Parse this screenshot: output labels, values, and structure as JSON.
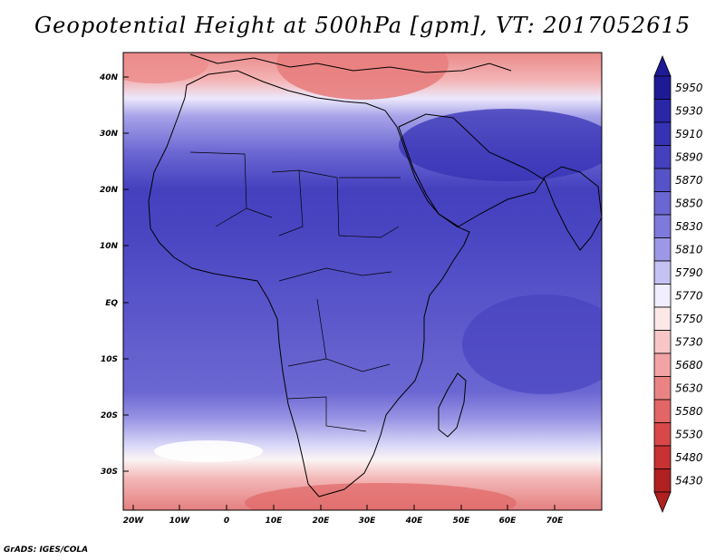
{
  "title": "Geopotential Height at 500hPa [gpm], VT: 2017052615",
  "credit": "GrADS: IGES/COLA",
  "map": {
    "lat_labels": [
      "40N",
      "30N",
      "20N",
      "10N",
      "EQ",
      "10S",
      "20S",
      "30S"
    ],
    "lon_labels": [
      "20W",
      "10W",
      "0",
      "10E",
      "20E",
      "30E",
      "40E",
      "50E",
      "60E",
      "70E"
    ]
  },
  "colorbar": {
    "levels": [
      {
        "value": "5950",
        "color": "#1e1a96"
      },
      {
        "value": "5930",
        "color": "#2a26a8"
      },
      {
        "value": "5910",
        "color": "#3632b4"
      },
      {
        "value": "5890",
        "color": "#4440be"
      },
      {
        "value": "5870",
        "color": "#5652c8"
      },
      {
        "value": "5850",
        "color": "#6a66d2"
      },
      {
        "value": "5830",
        "color": "#7e7adc"
      },
      {
        "value": "5810",
        "color": "#9c98e6"
      },
      {
        "value": "5790",
        "color": "#c4c2f2"
      },
      {
        "value": "5770",
        "color": "#f0eeff"
      },
      {
        "value": "5750",
        "color": "#fde8e8"
      },
      {
        "value": "5730",
        "color": "#f8c6c6"
      },
      {
        "value": "5680",
        "color": "#f2a4a4"
      },
      {
        "value": "5630",
        "color": "#ea8484"
      },
      {
        "value": "5580",
        "color": "#e26666"
      },
      {
        "value": "5530",
        "color": "#d84848"
      },
      {
        "value": "5480",
        "color": "#c83232"
      },
      {
        "value": "5430",
        "color": "#b02020"
      }
    ]
  }
}
